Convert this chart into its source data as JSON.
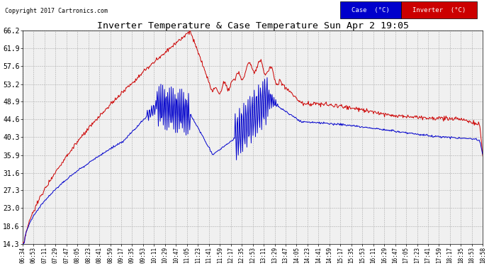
{
  "title": "Inverter Temperature & Case Temperature Sun Apr 2 19:05",
  "copyright": "Copyright 2017 Cartronics.com",
  "bg_color": "#ffffff",
  "plot_bg_color": "#f0f0f0",
  "grid_color": "#aaaaaa",
  "case_color": "#0000cc",
  "inverter_color": "#cc0000",
  "ylim": [
    14.3,
    66.2
  ],
  "yticks": [
    14.3,
    18.6,
    23.0,
    27.3,
    31.6,
    35.9,
    40.3,
    44.6,
    48.9,
    53.2,
    57.6,
    61.9,
    66.2
  ],
  "xtick_labels": [
    "06:34",
    "06:53",
    "07:11",
    "07:29",
    "07:47",
    "08:05",
    "08:23",
    "08:41",
    "08:59",
    "09:17",
    "09:35",
    "09:53",
    "10:11",
    "10:29",
    "10:47",
    "11:05",
    "11:23",
    "11:41",
    "11:59",
    "12:17",
    "12:35",
    "12:53",
    "13:11",
    "13:29",
    "13:47",
    "14:05",
    "14:23",
    "14:41",
    "14:59",
    "15:17",
    "15:35",
    "15:53",
    "16:11",
    "16:29",
    "16:47",
    "17:05",
    "17:23",
    "17:41",
    "17:59",
    "18:17",
    "18:35",
    "18:53",
    "18:58"
  ],
  "legend_case_label": "Case  (°C)",
  "legend_inverter_label": "Inverter  (°C)",
  "n_points": 750
}
